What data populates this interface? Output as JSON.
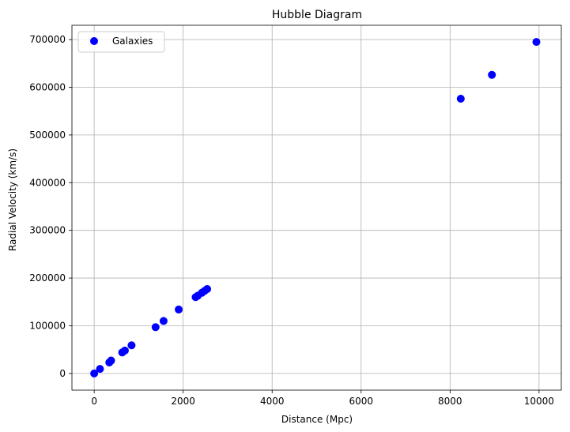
{
  "chart_data": {
    "type": "scatter",
    "title": "Hubble Diagram",
    "xlabel": "Distance (Mpc)",
    "ylabel": "Radial Velocity (km/s)",
    "xlim": [
      -500,
      10500
    ],
    "ylim": [
      -35000,
      730000
    ],
    "xticks": [
      0,
      2000,
      4000,
      6000,
      8000,
      10000
    ],
    "yticks": [
      0,
      100000,
      200000,
      300000,
      400000,
      500000,
      600000,
      700000
    ],
    "grid": true,
    "legend": {
      "placement": "top-left",
      "entries": [
        "Galaxies"
      ]
    },
    "color": "#0000ff",
    "series": [
      {
        "name": "Galaxies",
        "points": [
          {
            "x": 0,
            "y": 0
          },
          {
            "x": 130,
            "y": 9500
          },
          {
            "x": 340,
            "y": 23000
          },
          {
            "x": 380,
            "y": 27000
          },
          {
            "x": 630,
            "y": 44000
          },
          {
            "x": 690,
            "y": 48000
          },
          {
            "x": 840,
            "y": 59000
          },
          {
            "x": 1380,
            "y": 97000
          },
          {
            "x": 1560,
            "y": 110000
          },
          {
            "x": 1900,
            "y": 134000
          },
          {
            "x": 2280,
            "y": 160000
          },
          {
            "x": 2330,
            "y": 163000
          },
          {
            "x": 2420,
            "y": 169000
          },
          {
            "x": 2480,
            "y": 173000
          },
          {
            "x": 2540,
            "y": 177000
          },
          {
            "x": 8240,
            "y": 576000
          },
          {
            "x": 8940,
            "y": 626000
          },
          {
            "x": 9940,
            "y": 695000
          }
        ]
      }
    ]
  }
}
